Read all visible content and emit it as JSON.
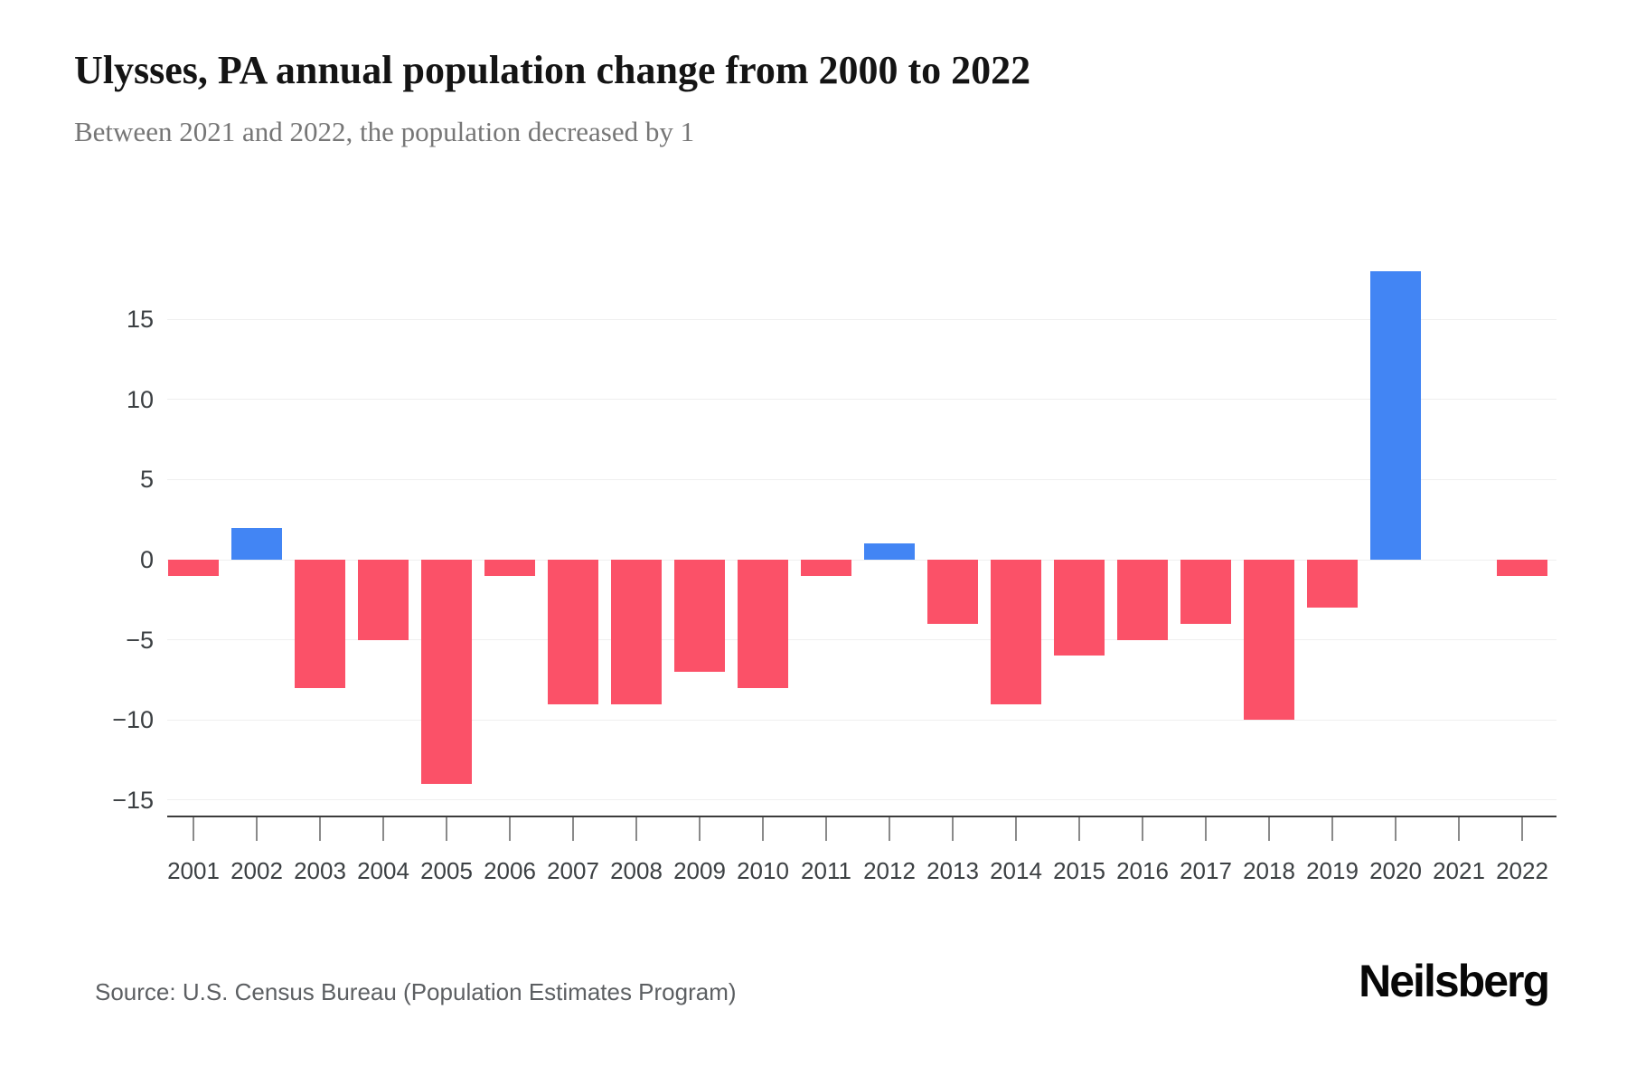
{
  "header": {
    "title": "Ulysses, PA annual population change from 2000 to 2022",
    "subtitle": "Between 2021 and 2022, the population decreased by 1"
  },
  "footer": {
    "source": "Source: U.S. Census Bureau (Population Estimates Program)",
    "brand": "Neilsberg"
  },
  "colors": {
    "positive_bar": "#4285f4",
    "negative_bar": "#fb5168",
    "grid": "#efefef",
    "axis_line": "#3c3c3c",
    "tick": "#8a8a8a",
    "axis_label": "#3c4043",
    "background": "#ffffff"
  },
  "chart_data": {
    "type": "bar",
    "title": "Ulysses, PA annual population change from 2000 to 2022",
    "subtitle": "Between 2021 and 2022, the population decreased by 1",
    "xlabel": "",
    "ylabel": "",
    "categories": [
      "2001",
      "2002",
      "2003",
      "2004",
      "2005",
      "2006",
      "2007",
      "2008",
      "2009",
      "2010",
      "2011",
      "2012",
      "2013",
      "2014",
      "2015",
      "2016",
      "2017",
      "2018",
      "2019",
      "2020",
      "2021",
      "2022"
    ],
    "values": [
      -1,
      2,
      -8,
      -5,
      -14,
      -1,
      -9,
      -9,
      -7,
      -8,
      -1,
      1,
      -4,
      -9,
      -6,
      -5,
      -4,
      -10,
      -3,
      18,
      0,
      -1
    ],
    "yticks": [
      15,
      10,
      5,
      0,
      -5,
      -10,
      -15
    ],
    "ytick_labels": [
      "15",
      "10",
      "5",
      "0",
      "−5",
      "−10",
      "−15"
    ],
    "ylim": [
      -16,
      19
    ],
    "grid": true,
    "legend": false,
    "positive_color": "#4285f4",
    "negative_color": "#fb5168"
  }
}
